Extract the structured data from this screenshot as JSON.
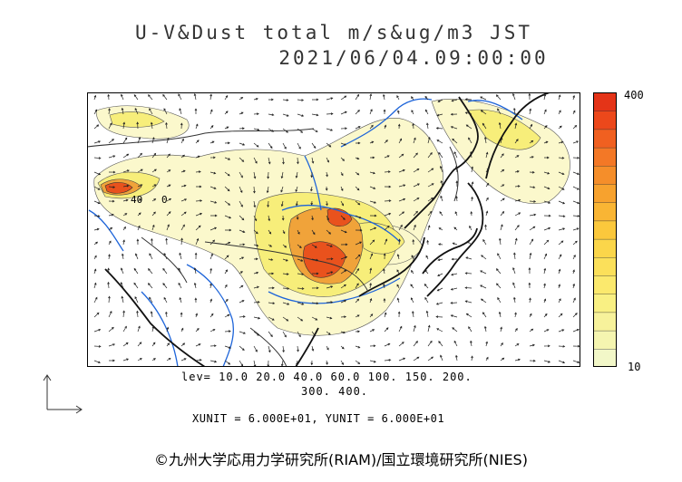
{
  "title": {
    "line1": "U-V&Dust total m/s&ug/m3 JST",
    "line2": "2021/06/04.09:00:00"
  },
  "colorbar": {
    "max_label": "400",
    "min_label": "10",
    "colors": [
      "#f2f7c8",
      "#f5f5b0",
      "#f7f29b",
      "#f9f083",
      "#fbe96d",
      "#fbe05a",
      "#fbd64a",
      "#fbc83c",
      "#f9b534",
      "#f7a22e",
      "#f58e2a",
      "#f37826",
      "#f06020",
      "#ec481b",
      "#e43418"
    ]
  },
  "levels": {
    "line1": "lev= 10.0 20.0 40.0 60.0 100. 150. 200.",
    "line2": "300. 400."
  },
  "units_text": "XUNIT = 6.000E+01, YUNIT = 6.000E+01",
  "copyright": "©九州大学応用力学研究所(RIAM)/国立環境研究所(NIES)",
  "map_labels": {
    "contour_40": "40",
    "contour_0": "0"
  },
  "map_colors": {
    "low": "#fbf8cc",
    "mid": "#f7ee7a",
    "high": "#f0a33a",
    "peak": "#e9521d",
    "coast": "#111111",
    "river": "#1d64d9",
    "border": "#333333"
  }
}
